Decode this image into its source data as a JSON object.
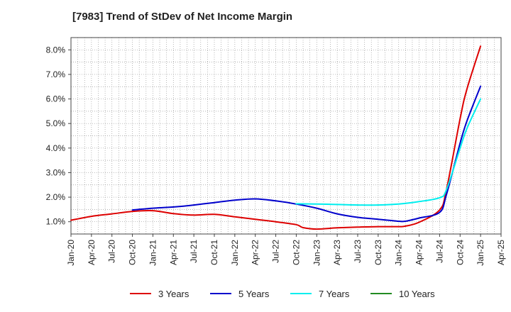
{
  "chart_data": {
    "type": "line",
    "title": "[7983]  Trend of StDev of Net Income Margin",
    "xlabel": "",
    "ylabel": "",
    "x_start": "2020-01",
    "x_end": "2025-04",
    "x_tick_labels": [
      "Jan-20",
      "Apr-20",
      "Jul-20",
      "Oct-20",
      "Jan-21",
      "Apr-21",
      "Jul-21",
      "Oct-21",
      "Jan-22",
      "Apr-22",
      "Jul-22",
      "Oct-22",
      "Jan-23",
      "Apr-23",
      "Jul-23",
      "Oct-23",
      "Jan-24",
      "Apr-24",
      "Jul-24",
      "Oct-24",
      "Jan-25",
      "Apr-25"
    ],
    "ylim": [
      0.5,
      8.5
    ],
    "y_ticks": [
      1.0,
      2.0,
      3.0,
      4.0,
      5.0,
      6.0,
      7.0,
      8.0
    ],
    "y_tick_labels": [
      "1.0%",
      "2.0%",
      "3.0%",
      "4.0%",
      "5.0%",
      "6.0%",
      "7.0%",
      "8.0%"
    ],
    "grid": true,
    "legend_position": "bottom",
    "series": [
      {
        "name": "3 Years",
        "color": "#dd0000",
        "points": [
          [
            "2020-01",
            1.06
          ],
          [
            "2020-04",
            1.22
          ],
          [
            "2020-07",
            1.32
          ],
          [
            "2020-10",
            1.42
          ],
          [
            "2021-01",
            1.45
          ],
          [
            "2021-04",
            1.33
          ],
          [
            "2021-07",
            1.27
          ],
          [
            "2021-10",
            1.3
          ],
          [
            "2022-01",
            1.2
          ],
          [
            "2022-04",
            1.1
          ],
          [
            "2022-07",
            1.0
          ],
          [
            "2022-10",
            0.88
          ],
          [
            "2022-11",
            0.76
          ],
          [
            "2023-01",
            0.7
          ],
          [
            "2023-04",
            0.75
          ],
          [
            "2023-07",
            0.78
          ],
          [
            "2023-10",
            0.8
          ],
          [
            "2024-01",
            0.8
          ],
          [
            "2024-02",
            0.82
          ],
          [
            "2024-04",
            0.98
          ],
          [
            "2024-07",
            1.48
          ],
          [
            "2024-08",
            2.3
          ],
          [
            "2024-10",
            5.2
          ],
          [
            "2024-11",
            6.4
          ],
          [
            "2025-01",
            8.15
          ]
        ]
      },
      {
        "name": "5 Years",
        "color": "#0000cc",
        "points": [
          [
            "2020-10",
            1.48
          ],
          [
            "2021-01",
            1.55
          ],
          [
            "2021-04",
            1.6
          ],
          [
            "2021-07",
            1.68
          ],
          [
            "2021-10",
            1.78
          ],
          [
            "2022-01",
            1.88
          ],
          [
            "2022-04",
            1.93
          ],
          [
            "2022-07",
            1.85
          ],
          [
            "2022-10",
            1.72
          ],
          [
            "2023-01",
            1.55
          ],
          [
            "2023-04",
            1.32
          ],
          [
            "2023-07",
            1.18
          ],
          [
            "2023-10",
            1.1
          ],
          [
            "2024-01",
            1.02
          ],
          [
            "2024-02",
            1.02
          ],
          [
            "2024-04",
            1.15
          ],
          [
            "2024-07",
            1.38
          ],
          [
            "2024-08",
            2.1
          ],
          [
            "2024-10",
            4.2
          ],
          [
            "2024-11",
            5.1
          ],
          [
            "2025-01",
            6.52
          ]
        ]
      },
      {
        "name": "7 Years",
        "color": "#00eeee",
        "points": [
          [
            "2022-10",
            1.73
          ],
          [
            "2023-01",
            1.72
          ],
          [
            "2023-04",
            1.7
          ],
          [
            "2023-07",
            1.68
          ],
          [
            "2023-10",
            1.68
          ],
          [
            "2024-01",
            1.72
          ],
          [
            "2024-04",
            1.82
          ],
          [
            "2024-07",
            1.98
          ],
          [
            "2024-08",
            2.3
          ],
          [
            "2024-10",
            4.0
          ],
          [
            "2024-11",
            4.8
          ],
          [
            "2025-01",
            6.0
          ]
        ]
      },
      {
        "name": "10 Years",
        "color": "#228b22",
        "points": []
      }
    ]
  }
}
